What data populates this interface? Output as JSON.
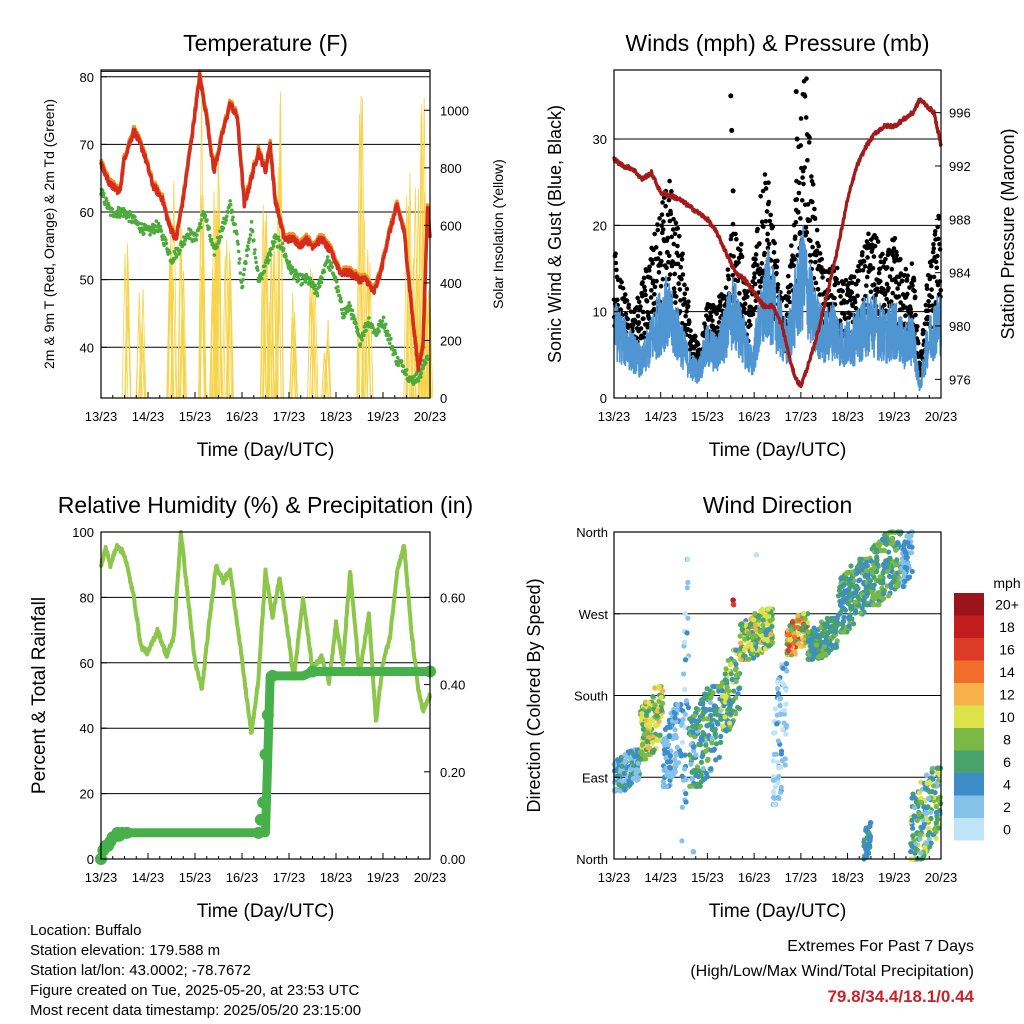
{
  "x_ticks": [
    "13/23",
    "14/23",
    "15/23",
    "16/23",
    "17/23",
    "18/23",
    "19/23",
    "20/23"
  ],
  "chart_data": [
    {
      "type": "line",
      "title": "Temperature (F)",
      "xlabel": "Time (Day/UTC)",
      "ylabel": "2m & 9m T (Red, Orange) & 2m Td (Green)",
      "ylabel_right": "Solar Insolation (Yellow)",
      "xlim_days": [
        0,
        7
      ],
      "ylim": [
        32.5,
        81
      ],
      "ylim_right": [
        0,
        1140
      ],
      "yticks": [
        40,
        50,
        60,
        70,
        80
      ],
      "yticks_right": [
        0,
        200,
        400,
        600,
        800,
        1000
      ],
      "grid": true,
      "colors": {
        "temp2m": "#d42d1f",
        "temp9m": "#f2921e",
        "dewpoint": "#4cab3a",
        "solar": "#f6d34a"
      },
      "series": [
        {
          "key": "temp2m",
          "axis": "left",
          "x": [
            0,
            0.2,
            0.4,
            0.5,
            0.7,
            0.9,
            1.1,
            1.3,
            1.45,
            1.6,
            1.75,
            1.95,
            2.1,
            2.25,
            2.4,
            2.6,
            2.75,
            2.9,
            3.05,
            3.2,
            3.35,
            3.5,
            3.6,
            3.7,
            3.9,
            4.1,
            4.25,
            4.35,
            4.5,
            4.7,
            4.9,
            5.1,
            5.3,
            5.5,
            5.65,
            5.8,
            5.95,
            6.1,
            6.3,
            6.45,
            6.55,
            6.65,
            6.75,
            6.85,
            6.95,
            7.0
          ],
          "y": [
            67,
            64,
            63,
            68,
            72,
            69,
            64,
            62,
            58,
            56,
            62,
            72,
            80,
            74,
            66,
            72,
            76,
            74,
            61,
            65,
            69,
            66,
            70,
            62,
            56,
            56,
            55,
            56,
            55,
            56,
            54,
            51,
            51,
            50,
            50,
            48,
            51,
            56,
            61,
            57,
            50,
            43,
            37,
            40,
            61,
            56
          ]
        },
        {
          "key": "dewpoint",
          "axis": "left",
          "x": [
            0,
            0.2,
            0.5,
            0.8,
            1.0,
            1.2,
            1.4,
            1.5,
            1.7,
            1.85,
            2.0,
            2.2,
            2.4,
            2.6,
            2.75,
            2.9,
            3.0,
            3.1,
            3.2,
            3.35,
            3.5,
            3.7,
            3.85,
            4.0,
            4.2,
            4.4,
            4.6,
            4.8,
            4.95,
            5.15,
            5.3,
            5.5,
            5.7,
            5.85,
            6.0,
            6.15,
            6.3,
            6.45,
            6.6,
            6.8,
            6.95
          ],
          "y": [
            63,
            60,
            60,
            58,
            57,
            58,
            55,
            53,
            55,
            57,
            56,
            60,
            54,
            58,
            61,
            56,
            49,
            54,
            58,
            50,
            52,
            56,
            55,
            52,
            50,
            50,
            48,
            53,
            51,
            45,
            46,
            41,
            44,
            42,
            44,
            41,
            38,
            37,
            35,
            36,
            39
          ]
        },
        {
          "key": "solar",
          "axis": "right",
          "type": "spikes",
          "events": [
            [
              0.55,
              540
            ],
            [
              0.85,
              420
            ],
            [
              1.5,
              820
            ],
            [
              1.7,
              650
            ],
            [
              2.15,
              1100
            ],
            [
              2.4,
              790
            ],
            [
              2.5,
              900
            ],
            [
              2.7,
              630
            ],
            [
              3.5,
              700
            ],
            [
              3.65,
              560
            ],
            [
              3.8,
              1120
            ],
            [
              4.1,
              450
            ],
            [
              4.5,
              480
            ],
            [
              4.8,
              330
            ],
            [
              5.55,
              1060
            ],
            [
              5.7,
              580
            ],
            [
              6.55,
              1010
            ],
            [
              6.7,
              760
            ],
            [
              6.85,
              1050
            ],
            [
              6.95,
              400
            ]
          ]
        }
      ]
    },
    {
      "type": "line",
      "title": "Winds (mph) & Pressure (mb)",
      "xlabel": "Time (Day/UTC)",
      "ylabel": "Sonic Wind & Gust (Blue, Black)",
      "ylabel_right": "Station Pressure (Maroon)",
      "xlim_days": [
        0,
        7
      ],
      "ylim": [
        0,
        38
      ],
      "ylim_right": [
        974.6,
        999.2
      ],
      "yticks": [
        0,
        10,
        20,
        30
      ],
      "yticks_right": [
        976,
        980,
        984,
        988,
        992,
        996
      ],
      "grid": true,
      "colors": {
        "wind": "#4f95d2",
        "gust": "#000000",
        "pressure": "#a31a1a"
      },
      "series": [
        {
          "key": "wind",
          "axis": "left",
          "x": [
            0,
            0.3,
            0.6,
            0.9,
            1.1,
            1.4,
            1.6,
            1.8,
            2.0,
            2.2,
            2.4,
            2.55,
            2.75,
            2.95,
            3.1,
            3.3,
            3.5,
            3.7,
            3.9,
            4.05,
            4.3,
            4.5,
            4.7,
            4.9,
            5.2,
            5.5,
            5.8,
            6.0,
            6.2,
            6.4,
            6.55,
            6.7,
            6.85,
            7.0
          ],
          "y": [
            8,
            6,
            4,
            8,
            10,
            7,
            4,
            3,
            6,
            5,
            8,
            10,
            7,
            4,
            8,
            12,
            9,
            6,
            11,
            14,
            9,
            7,
            8,
            6,
            7,
            9,
            7,
            8,
            6,
            7,
            1,
            6,
            8,
            9
          ]
        },
        {
          "key": "gust",
          "axis": "left",
          "x": [
            0,
            0.2,
            0.4,
            0.6,
            0.8,
            1.0,
            1.2,
            1.45,
            1.7,
            1.85,
            2.0,
            2.2,
            2.4,
            2.55,
            2.75,
            2.9,
            3.05,
            3.25,
            3.45,
            3.65,
            3.85,
            4.0,
            4.1,
            4.3,
            4.5,
            4.7,
            4.9,
            5.2,
            5.5,
            5.8,
            6.0,
            6.2,
            6.4,
            6.55,
            6.7,
            6.85,
            7.0
          ],
          "y": [
            13,
            10,
            7,
            10,
            13,
            17,
            19,
            13,
            6,
            4,
            9,
            8,
            11,
            15,
            13,
            8,
            16,
            21,
            13,
            8,
            15,
            25,
            29,
            16,
            11,
            12,
            10,
            11,
            15,
            12,
            14,
            11,
            12,
            3,
            10,
            14,
            17
          ]
        },
        {
          "key": "gust_outliers",
          "axis": "left",
          "type": "points",
          "x": [
            2.5,
            2.52,
            2.55,
            3.9,
            3.92
          ],
          "y": [
            35,
            31,
            24,
            35.5,
            30
          ]
        },
        {
          "key": "pressure",
          "axis": "right",
          "x": [
            0,
            0.2,
            0.4,
            0.6,
            0.8,
            1.0,
            1.2,
            1.4,
            1.6,
            1.8,
            2.0,
            2.2,
            2.4,
            2.6,
            2.8,
            3.0,
            3.2,
            3.4,
            3.6,
            3.8,
            3.9,
            4.0,
            4.2,
            4.4,
            4.6,
            4.8,
            5.0,
            5.2,
            5.4,
            5.6,
            5.8,
            6.0,
            6.2,
            6.4,
            6.55,
            6.7,
            6.85,
            7.0
          ],
          "y": [
            992.5,
            992.0,
            991.8,
            991.0,
            991.5,
            990.0,
            989.8,
            989.5,
            989.0,
            988.5,
            988.0,
            987.0,
            985.5,
            984.0,
            983.5,
            982.5,
            981.5,
            981.5,
            980.0,
            977.0,
            976.0,
            975.5,
            977.5,
            980.0,
            983.0,
            986.0,
            989.5,
            992.0,
            993.5,
            994.5,
            995.0,
            995.0,
            995.5,
            996.0,
            997.0,
            996.5,
            996.0,
            993.5
          ]
        }
      ]
    },
    {
      "type": "line",
      "title": "Relative Humidity (%) & Precipitation (in)",
      "xlabel": "Time (Day/UTC)",
      "ylabel": "Percent & Total Rainfall",
      "xlim_days": [
        0,
        7
      ],
      "ylim": [
        0,
        100
      ],
      "ylim_right": [
        0,
        0.75
      ],
      "yticks": [
        0,
        20,
        40,
        60,
        80,
        100
      ],
      "yticks_right": [
        "0.00",
        "0.20",
        "0.40",
        "0.60"
      ],
      "grid": true,
      "colors": {
        "rh": "#8cc64b",
        "precip": "#46b04a"
      },
      "series": [
        {
          "key": "rh",
          "axis": "left",
          "x": [
            0,
            0.1,
            0.2,
            0.35,
            0.5,
            0.7,
            0.85,
            1.0,
            1.2,
            1.4,
            1.55,
            1.7,
            1.85,
            2.0,
            2.15,
            2.3,
            2.45,
            2.6,
            2.75,
            2.9,
            3.05,
            3.2,
            3.35,
            3.5,
            3.65,
            3.8,
            3.95,
            4.1,
            4.3,
            4.5,
            4.7,
            4.85,
            5.0,
            5.15,
            5.3,
            5.5,
            5.7,
            5.85,
            6.0,
            6.15,
            6.3,
            6.45,
            6.6,
            6.75,
            6.85,
            7.0
          ],
          "y": [
            90,
            95,
            90,
            96,
            93,
            80,
            65,
            63,
            70,
            62,
            68,
            100,
            80,
            60,
            52,
            72,
            90,
            85,
            88,
            72,
            55,
            38,
            55,
            88,
            74,
            86,
            72,
            55,
            80,
            58,
            62,
            54,
            72,
            60,
            88,
            56,
            75,
            42,
            60,
            68,
            88,
            96,
            70,
            52,
            45,
            50
          ]
        },
        {
          "key": "precip",
          "axis": "right",
          "type": "points",
          "x": [
            0,
            0.05,
            0.1,
            0.15,
            0.2,
            0.25,
            0.35,
            0.45,
            0.55,
            3.35,
            3.4,
            3.45,
            3.5,
            3.55,
            3.65,
            4.5,
            7.0
          ],
          "y": [
            0.0,
            0.02,
            0.03,
            0.03,
            0.04,
            0.05,
            0.06,
            0.06,
            0.06,
            0.06,
            0.09,
            0.13,
            0.24,
            0.33,
            0.42,
            0.43,
            0.43
          ]
        },
        {
          "key": "precip_line",
          "axis": "right",
          "x": [
            0.2,
            0.3,
            0.4,
            0.5,
            0.6,
            3.25,
            3.3,
            3.5,
            3.6,
            3.65,
            4.0,
            4.3,
            4.5,
            7.0
          ],
          "y": [
            0.04,
            0.05,
            0.05,
            0.06,
            0.06,
            0.06,
            0.06,
            0.06,
            0.42,
            0.42,
            0.42,
            0.42,
            0.43,
            0.43
          ]
        }
      ]
    },
    {
      "type": "scatter",
      "title": "Wind Direction",
      "xlabel": "Time (Day/UTC)",
      "ylabel": "Direction (Colored By Speed)",
      "xlim_days": [
        0,
        7
      ],
      "ylim": [
        0,
        360
      ],
      "y_categories": [
        "North",
        "East",
        "South",
        "West",
        "North"
      ],
      "grid": true,
      "colorbar": {
        "title": "mph",
        "labels": [
          "0",
          "2",
          "4",
          "6",
          "8",
          "10",
          "12",
          "14",
          "16",
          "18",
          "20+"
        ],
        "colors": [
          "#bfe4f7",
          "#85c2ea",
          "#3e8dc8",
          "#47a36b",
          "#7ab944",
          "#dce34a",
          "#f7b04a",
          "#f06d2a",
          "#dc3b27",
          "#c41d20",
          "#9b1419"
        ]
      },
      "clusters": [
        {
          "x": [
            0.0,
            0.55
          ],
          "dir": [
            75,
            120
          ],
          "spd": [
            2,
            7
          ]
        },
        {
          "x": [
            0.55,
            1.05
          ],
          "dir": [
            110,
            190
          ],
          "spd": [
            6,
            13
          ]
        },
        {
          "x": [
            1.05,
            1.45
          ],
          "dir": [
            80,
            170
          ],
          "spd": [
            2,
            6
          ]
        },
        {
          "x": [
            1.45,
            1.6
          ],
          "dir": [
            20,
            330
          ],
          "spd": [
            1,
            5
          ]
        },
        {
          "x": [
            1.6,
            2.3
          ],
          "dir": [
            80,
            190
          ],
          "spd": [
            3,
            9
          ]
        },
        {
          "x": [
            2.3,
            2.7
          ],
          "dir": [
            140,
            230
          ],
          "spd": [
            4,
            11
          ]
        },
        {
          "x": [
            2.7,
            3.4
          ],
          "dir": [
            220,
            275
          ],
          "spd": [
            5,
            13
          ]
        },
        {
          "x": [
            3.4,
            3.7
          ],
          "dir": [
            60,
            215
          ],
          "spd": [
            1,
            5
          ]
        },
        {
          "x": [
            3.7,
            4.15
          ],
          "dir": [
            225,
            270
          ],
          "spd": [
            6,
            17
          ]
        },
        {
          "x": [
            4.15,
            4.8
          ],
          "dir": [
            220,
            265
          ],
          "spd": [
            4,
            9
          ]
        },
        {
          "x": [
            4.8,
            5.4
          ],
          "dir": [
            250,
            330
          ],
          "spd": [
            4,
            9
          ]
        },
        {
          "x": [
            5.4,
            6.15
          ],
          "dir": [
            280,
            360
          ],
          "spd": [
            4,
            10
          ]
        },
        {
          "x": [
            6.15,
            6.4
          ],
          "dir": [
            300,
            360
          ],
          "spd": [
            2,
            6
          ]
        },
        {
          "x": [
            6.35,
            7.0
          ],
          "dir": [
            0,
            100
          ],
          "spd": [
            3,
            12
          ]
        },
        {
          "x": [
            5.35,
            5.5
          ],
          "dir": [
            0,
            40
          ],
          "spd": [
            4,
            7
          ]
        }
      ],
      "points": [
        {
          "x": 2.55,
          "dir": 285,
          "spd": 18
        },
        {
          "x": 2.56,
          "dir": 280,
          "spd": 17
        },
        {
          "x": 3.05,
          "dir": 335,
          "spd": 1
        },
        {
          "x": 1.7,
          "dir": 8,
          "spd": 3
        }
      ]
    }
  ],
  "footer": {
    "location": "Location: Buffalo",
    "elevation": "Station elevation: 179.588 m",
    "latlon": "Station lat/lon: 43.0002; -78.7672",
    "created": "Figure created on Tue, 2025-05-20, at 23:53 UTC",
    "recent": "Most recent data timestamp: 2025/05/20 23:15:00",
    "extremes_title": "Extremes For Past 7 Days",
    "extremes_subtitle": "(High/Low/Max Wind/Total Precipitation)",
    "extremes_values": "79.8/34.4/18.1/0.44"
  }
}
